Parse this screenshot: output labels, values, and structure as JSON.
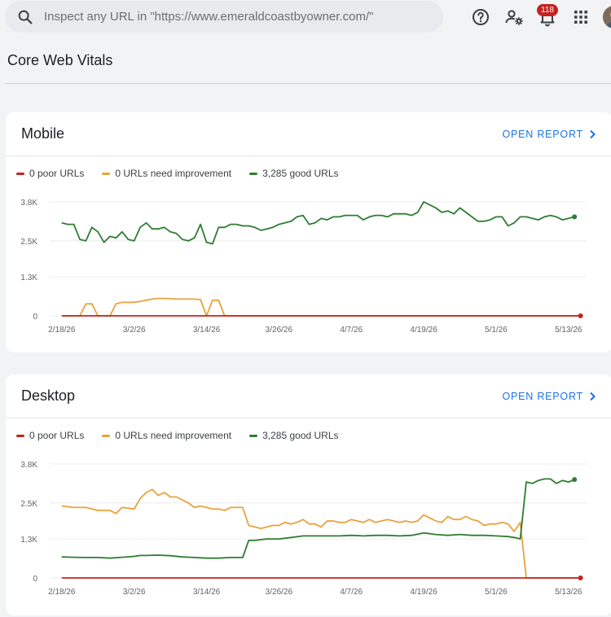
{
  "search": {
    "placeholder": "Inspect any URL in \"https://www.emeraldcoastbyowner.com/\""
  },
  "notifications": {
    "count": "118"
  },
  "page_title": "Core Web Vitals",
  "icons": {
    "search": "search-icon",
    "help": "help-icon",
    "users": "manage-users-icon",
    "notifications": "notifications-icon",
    "apps": "apps-grid-icon",
    "avatar": "avatar"
  },
  "colors": {
    "poor": "#c5221f",
    "needs_improvement": "#e8a33d",
    "good": "#2e7d32",
    "link": "#1a73e8"
  },
  "cards": {
    "mobile": {
      "title": "Mobile",
      "open_report": "OPEN REPORT",
      "legend": {
        "poor": "0 poor URLs",
        "needs": "0 URLs need improvement",
        "good": "3,285 good URLs"
      }
    },
    "desktop": {
      "title": "Desktop",
      "open_report": "OPEN REPORT",
      "legend": {
        "poor": "0 poor URLs",
        "needs": "0 URLs need improvement",
        "good": "3,285 good URLs"
      }
    }
  },
  "chart_data": [
    {
      "type": "line",
      "ytick_labels": [
        "3.8K",
        "2.5K",
        "1.3K",
        "0"
      ],
      "yticks": [
        3800,
        2500,
        1300,
        0
      ],
      "ylim": [
        0,
        3800
      ],
      "xtick_labels": [
        "2/18/26",
        "3/2/26",
        "3/14/26",
        "3/26/26",
        "4/7/26",
        "4/19/26",
        "5/1/26",
        "5/13/26"
      ],
      "xtick_days": [
        0,
        12,
        24,
        36,
        48,
        60,
        72,
        84
      ],
      "xlim": [
        -2,
        87
      ],
      "series": [
        {
          "name": "0 poor URLs",
          "color": "#c5221f",
          "values": [
            [
              0,
              0
            ],
            [
              86,
              0
            ]
          ]
        },
        {
          "name": "0 URLs need improvement",
          "color": "#e8a33d",
          "values": [
            [
              0,
              0
            ],
            [
              3,
              0
            ],
            [
              4,
              400
            ],
            [
              5,
              400
            ],
            [
              6,
              0
            ],
            [
              7,
              0
            ],
            [
              8,
              0
            ],
            [
              9,
              400
            ],
            [
              10,
              450
            ],
            [
              11,
              450
            ],
            [
              12,
              450
            ],
            [
              13,
              480
            ],
            [
              14,
              520
            ],
            [
              15,
              560
            ],
            [
              16,
              580
            ],
            [
              17,
              580
            ],
            [
              18,
              570
            ],
            [
              19,
              560
            ],
            [
              20,
              560
            ],
            [
              21,
              560
            ],
            [
              22,
              560
            ],
            [
              23,
              540
            ],
            [
              24,
              0
            ],
            [
              25,
              520
            ],
            [
              26,
              520
            ],
            [
              27,
              0
            ],
            [
              86,
              0
            ]
          ]
        },
        {
          "name": "3,285 good URLs",
          "color": "#2e7d32",
          "values": [
            [
              0,
              3100
            ],
            [
              1,
              3050
            ],
            [
              2,
              3050
            ],
            [
              3,
              2550
            ],
            [
              4,
              2500
            ],
            [
              5,
              2950
            ],
            [
              6,
              2800
            ],
            [
              7,
              2450
            ],
            [
              8,
              2650
            ],
            [
              9,
              2600
            ],
            [
              10,
              2800
            ],
            [
              11,
              2550
            ],
            [
              12,
              2500
            ],
            [
              13,
              2950
            ],
            [
              14,
              3100
            ],
            [
              15,
              2900
            ],
            [
              16,
              2900
            ],
            [
              17,
              2950
            ],
            [
              18,
              2800
            ],
            [
              19,
              2750
            ],
            [
              20,
              2550
            ],
            [
              21,
              2500
            ],
            [
              22,
              2600
            ],
            [
              23,
              3050
            ],
            [
              24,
              2450
            ],
            [
              25,
              2400
            ],
            [
              26,
              2950
            ],
            [
              27,
              2950
            ],
            [
              28,
              3050
            ],
            [
              29,
              3050
            ],
            [
              30,
              3000
            ],
            [
              31,
              3000
            ],
            [
              32,
              2950
            ],
            [
              33,
              2850
            ],
            [
              34,
              2900
            ],
            [
              35,
              2950
            ],
            [
              36,
              3050
            ],
            [
              37,
              3100
            ],
            [
              38,
              3150
            ],
            [
              39,
              3300
            ],
            [
              40,
              3350
            ],
            [
              41,
              3050
            ],
            [
              42,
              3100
            ],
            [
              43,
              3250
            ],
            [
              44,
              3200
            ],
            [
              45,
              3300
            ],
            [
              46,
              3300
            ],
            [
              47,
              3350
            ],
            [
              48,
              3350
            ],
            [
              49,
              3350
            ],
            [
              50,
              3200
            ],
            [
              51,
              3300
            ],
            [
              52,
              3350
            ],
            [
              53,
              3350
            ],
            [
              54,
              3300
            ],
            [
              55,
              3400
            ],
            [
              56,
              3400
            ],
            [
              57,
              3400
            ],
            [
              58,
              3350
            ],
            [
              59,
              3450
            ],
            [
              60,
              3800
            ],
            [
              61,
              3700
            ],
            [
              62,
              3600
            ],
            [
              63,
              3450
            ],
            [
              64,
              3500
            ],
            [
              65,
              3400
            ],
            [
              66,
              3600
            ],
            [
              67,
              3450
            ],
            [
              68,
              3300
            ],
            [
              69,
              3150
            ],
            [
              70,
              3150
            ],
            [
              71,
              3200
            ],
            [
              72,
              3300
            ],
            [
              73,
              3300
            ],
            [
              74,
              3000
            ],
            [
              75,
              3100
            ],
            [
              76,
              3300
            ],
            [
              77,
              3300
            ],
            [
              78,
              3250
            ],
            [
              79,
              3200
            ],
            [
              80,
              3300
            ],
            [
              81,
              3350
            ],
            [
              82,
              3300
            ],
            [
              83,
              3200
            ],
            [
              84,
              3250
            ],
            [
              85,
              3300
            ]
          ]
        }
      ]
    },
    {
      "type": "line",
      "ytick_labels": [
        "3.8K",
        "2.5K",
        "1.3K",
        "0"
      ],
      "yticks": [
        3800,
        2500,
        1300,
        0
      ],
      "ylim": [
        0,
        3800
      ],
      "xtick_labels": [
        "2/18/26",
        "3/2/26",
        "3/14/26",
        "3/26/26",
        "4/7/26",
        "4/19/26",
        "5/1/26",
        "5/13/26"
      ],
      "xtick_days": [
        0,
        12,
        24,
        36,
        48,
        60,
        72,
        84
      ],
      "xlim": [
        -2,
        87
      ],
      "series": [
        {
          "name": "0 poor URLs",
          "color": "#c5221f",
          "values": [
            [
              0,
              0
            ],
            [
              86,
              0
            ]
          ]
        },
        {
          "name": "0 URLs need improvement",
          "color": "#e8a33d",
          "values": [
            [
              0,
              2400
            ],
            [
              2,
              2350
            ],
            [
              4,
              2350
            ],
            [
              6,
              2250
            ],
            [
              8,
              2250
            ],
            [
              9,
              2150
            ],
            [
              10,
              2350
            ],
            [
              12,
              2300
            ],
            [
              13,
              2650
            ],
            [
              14,
              2850
            ],
            [
              15,
              2950
            ],
            [
              16,
              2750
            ],
            [
              17,
              2850
            ],
            [
              18,
              2700
            ],
            [
              19,
              2700
            ],
            [
              20,
              2600
            ],
            [
              21,
              2500
            ],
            [
              22,
              2350
            ],
            [
              23,
              2400
            ],
            [
              24,
              2350
            ],
            [
              25,
              2300
            ],
            [
              26,
              2300
            ],
            [
              27,
              2250
            ],
            [
              28,
              2350
            ],
            [
              29,
              2350
            ],
            [
              30,
              2350
            ],
            [
              31,
              1750
            ],
            [
              32,
              1700
            ],
            [
              33,
              1650
            ],
            [
              34,
              1700
            ],
            [
              35,
              1750
            ],
            [
              36,
              1750
            ],
            [
              37,
              1850
            ],
            [
              38,
              1800
            ],
            [
              39,
              1850
            ],
            [
              40,
              1950
            ],
            [
              41,
              1800
            ],
            [
              42,
              1800
            ],
            [
              43,
              1700
            ],
            [
              44,
              1900
            ],
            [
              45,
              1900
            ],
            [
              46,
              1850
            ],
            [
              47,
              1850
            ],
            [
              48,
              1950
            ],
            [
              49,
              1900
            ],
            [
              50,
              1850
            ],
            [
              51,
              1950
            ],
            [
              52,
              1850
            ],
            [
              53,
              1900
            ],
            [
              54,
              1950
            ],
            [
              55,
              1900
            ],
            [
              56,
              1850
            ],
            [
              57,
              1900
            ],
            [
              58,
              1850
            ],
            [
              59,
              1900
            ],
            [
              60,
              2100
            ],
            [
              61,
              2000
            ],
            [
              62,
              1900
            ],
            [
              63,
              1850
            ],
            [
              64,
              2050
            ],
            [
              65,
              1950
            ],
            [
              66,
              1950
            ],
            [
              67,
              2050
            ],
            [
              68,
              1950
            ],
            [
              69,
              1900
            ],
            [
              70,
              1750
            ],
            [
              71,
              1800
            ],
            [
              72,
              1800
            ],
            [
              73,
              1850
            ],
            [
              74,
              1800
            ],
            [
              75,
              1550
            ],
            [
              76,
              1850
            ],
            [
              77,
              0
            ],
            [
              86,
              0
            ]
          ]
        },
        {
          "name": "3,285 good URLs",
          "color": "#2e7d32",
          "values": [
            [
              0,
              700
            ],
            [
              2,
              690
            ],
            [
              4,
              680
            ],
            [
              6,
              680
            ],
            [
              8,
              660
            ],
            [
              10,
              690
            ],
            [
              12,
              720
            ],
            [
              13,
              750
            ],
            [
              14,
              750
            ],
            [
              16,
              760
            ],
            [
              18,
              740
            ],
            [
              20,
              700
            ],
            [
              22,
              680
            ],
            [
              24,
              660
            ],
            [
              26,
              660
            ],
            [
              28,
              680
            ],
            [
              30,
              680
            ],
            [
              31,
              1250
            ],
            [
              32,
              1250
            ],
            [
              34,
              1300
            ],
            [
              36,
              1300
            ],
            [
              38,
              1350
            ],
            [
              40,
              1400
            ],
            [
              42,
              1400
            ],
            [
              44,
              1400
            ],
            [
              46,
              1400
            ],
            [
              48,
              1420
            ],
            [
              50,
              1400
            ],
            [
              52,
              1420
            ],
            [
              54,
              1420
            ],
            [
              56,
              1400
            ],
            [
              58,
              1420
            ],
            [
              60,
              1500
            ],
            [
              62,
              1450
            ],
            [
              64,
              1420
            ],
            [
              66,
              1450
            ],
            [
              68,
              1420
            ],
            [
              70,
              1420
            ],
            [
              72,
              1400
            ],
            [
              74,
              1380
            ],
            [
              75,
              1350
            ],
            [
              76,
              1300
            ],
            [
              77,
              3200
            ],
            [
              78,
              3150
            ],
            [
              79,
              3250
            ],
            [
              80,
              3300
            ],
            [
              81,
              3300
            ],
            [
              82,
              3150
            ],
            [
              83,
              3250
            ],
            [
              84,
              3200
            ],
            [
              85,
              3280
            ]
          ]
        }
      ]
    }
  ]
}
